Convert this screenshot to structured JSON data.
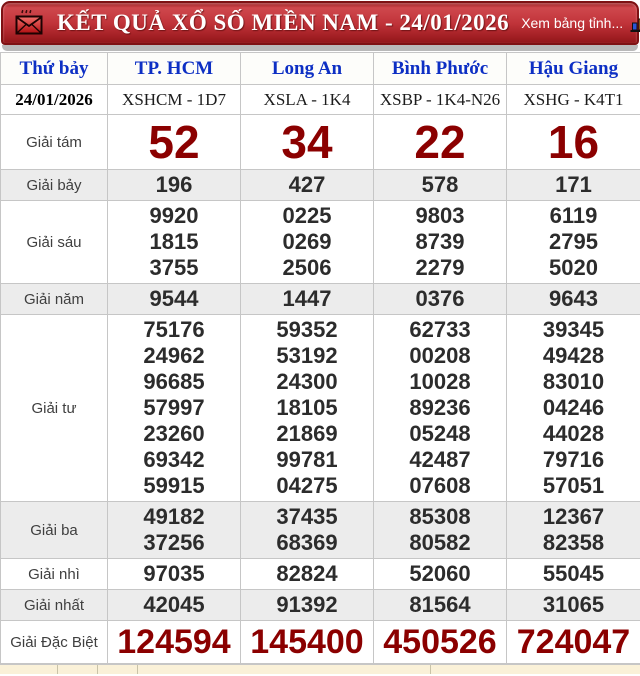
{
  "header": {
    "title": "KẾT QUẢ XỔ SỐ MIỀN NAM - 24/01/2026",
    "view_link": "Xem bảng tỉnh...",
    "bar_color": "#b3262b",
    "title_color": "#ffffff"
  },
  "table": {
    "day_label": "Thứ bảy",
    "date": "24/01/2026",
    "provinces": [
      {
        "name": "TP. HCM",
        "code": "XSHCM - 1D7"
      },
      {
        "name": "Long An",
        "code": "XSLA - 1K4"
      },
      {
        "name": "Bình Phước",
        "code": "XSBP - 1K4-N26"
      },
      {
        "name": "Hậu Giang",
        "code": "XSHG - K4T1"
      }
    ],
    "prizes": [
      {
        "label": "Giải tám",
        "emphasis": "big",
        "shaded": false,
        "values": [
          [
            "52"
          ],
          [
            "34"
          ],
          [
            "22"
          ],
          [
            "16"
          ]
        ]
      },
      {
        "label": "Giải bảy",
        "emphasis": "normal",
        "shaded": true,
        "values": [
          [
            "196"
          ],
          [
            "427"
          ],
          [
            "578"
          ],
          [
            "171"
          ]
        ]
      },
      {
        "label": "Giải sáu",
        "emphasis": "normal",
        "shaded": false,
        "values": [
          [
            "9920",
            "1815",
            "3755"
          ],
          [
            "0225",
            "0269",
            "2506"
          ],
          [
            "9803",
            "8739",
            "2279"
          ],
          [
            "6119",
            "2795",
            "5020"
          ]
        ]
      },
      {
        "label": "Giải năm",
        "emphasis": "normal",
        "shaded": true,
        "values": [
          [
            "9544"
          ],
          [
            "1447"
          ],
          [
            "0376"
          ],
          [
            "9643"
          ]
        ]
      },
      {
        "label": "Giải tư",
        "emphasis": "normal",
        "shaded": false,
        "values": [
          [
            "75176",
            "24962",
            "96685",
            "57997",
            "23260",
            "69342",
            "59915"
          ],
          [
            "59352",
            "53192",
            "24300",
            "18105",
            "21869",
            "99781",
            "04275"
          ],
          [
            "62733",
            "00208",
            "10028",
            "89236",
            "05248",
            "42487",
            "07608"
          ],
          [
            "39345",
            "49428",
            "83010",
            "04246",
            "44028",
            "79716",
            "57051"
          ]
        ]
      },
      {
        "label": "Giải ba",
        "emphasis": "normal",
        "shaded": true,
        "values": [
          [
            "49182",
            "37256"
          ],
          [
            "37435",
            "68369"
          ],
          [
            "85308",
            "80582"
          ],
          [
            "12367",
            "82358"
          ]
        ]
      },
      {
        "label": "Giải nhì",
        "emphasis": "normal",
        "shaded": false,
        "values": [
          [
            "97035"
          ],
          [
            "82824"
          ],
          [
            "52060"
          ],
          [
            "55045"
          ]
        ]
      },
      {
        "label": "Giải nhất",
        "emphasis": "normal",
        "shaded": true,
        "values": [
          [
            "42045"
          ],
          [
            "91392"
          ],
          [
            "81564"
          ],
          [
            "31065"
          ]
        ]
      },
      {
        "label": "Giải Đặc Biệt",
        "emphasis": "special",
        "shaded": false,
        "values": [
          [
            "124594"
          ],
          [
            "145400"
          ],
          [
            "450526"
          ],
          [
            "724047"
          ]
        ]
      }
    ],
    "colors": {
      "column_header_text": "#0d2fc4",
      "big_number": "#8b0000",
      "number": "#2c2c2c",
      "shaded_row": "#ececec"
    }
  }
}
